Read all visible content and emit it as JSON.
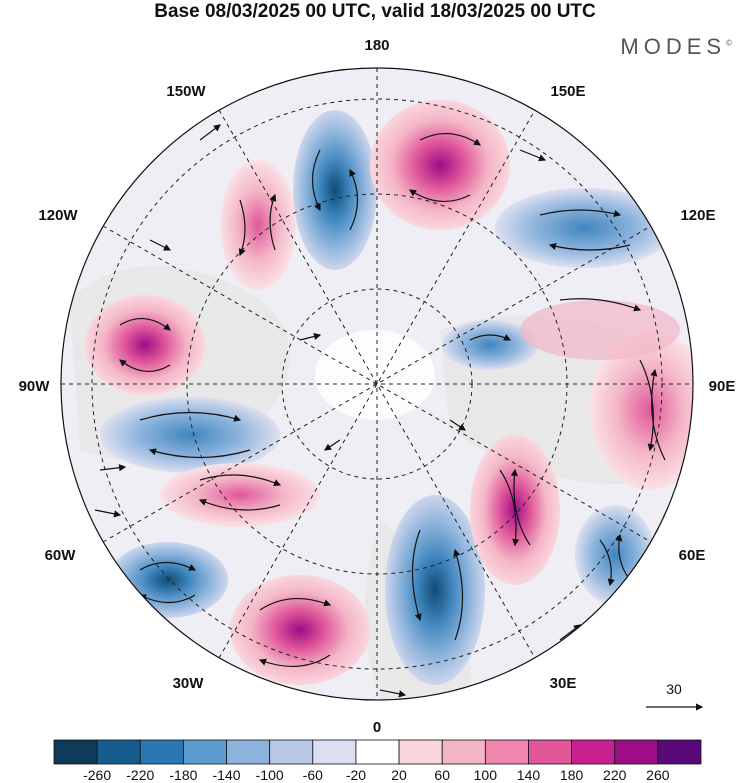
{
  "title": "Base 08/03/2025 00 UTC, valid 18/03/2025 00 UTC",
  "logo": "MODES",
  "logo_mark": "©",
  "map": {
    "projection": "north-polar-stereographic",
    "longitude_labels": {
      "top": "180",
      "bottom": "0",
      "left": "90W",
      "right": "90E",
      "upper_left_1": "150W",
      "upper_left_2": "120W",
      "lower_left_1": "60W",
      "lower_left_2": "30W",
      "upper_right_1": "150E",
      "upper_right_2": "120E",
      "lower_right_1": "60E",
      "lower_right_2": "30E"
    },
    "vector_reference": "30"
  },
  "colors": {
    "neg_strong": "#0f4a76",
    "neg_mid": "#3f86bd",
    "neg_weak": "#b9c6e4",
    "neutral": "#ffffff",
    "pos_weak": "#f4b6c7",
    "pos_mid": "#e0579a",
    "pos_strong": "#9c0d87",
    "land_gray": "#e8e8e8"
  },
  "colorbar": {
    "colors": [
      "#0f3a5a",
      "#155c8f",
      "#2a78b3",
      "#5b9bd0",
      "#8cb3dc",
      "#b9c6e4",
      "#dddff0",
      "#ffffff",
      "#fad6dd",
      "#f4b6c7",
      "#ee86ad",
      "#e0579a",
      "#c71f8f",
      "#9c0d87",
      "#5a0a78"
    ],
    "tick_labels": [
      "-260",
      "-220",
      "-180",
      "-140",
      "-100",
      "-60",
      "-20",
      "20",
      "60",
      "100",
      "140",
      "180",
      "220",
      "260"
    ]
  }
}
